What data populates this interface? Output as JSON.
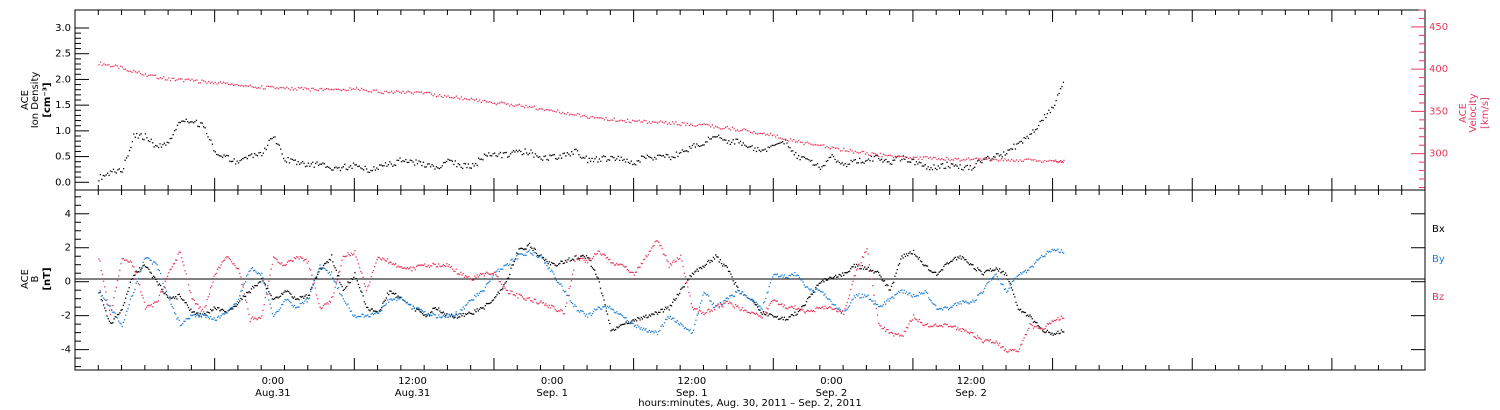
{
  "chart_data": [
    {
      "type": "scatter",
      "panel": "plasma",
      "ylabel_left": [
        "ACE",
        "Ion Density",
        "[cm⁻³]"
      ],
      "ylabel_right": [
        "ACE",
        "Velocity",
        "[km/s]"
      ],
      "ylim_left": [
        -0.15,
        3.35
      ],
      "ylim_right": [
        257,
        470
      ],
      "yticks_left": [
        "0.0",
        "0.5",
        "1.0",
        "1.5",
        "2.0",
        "2.5",
        "3.0"
      ],
      "yticks_right": [
        "300",
        "350",
        "400",
        "450"
      ],
      "series": [
        {
          "axis": "left",
          "color": "#000000",
          "x_hours": [
            0,
            1,
            2,
            3,
            4,
            5,
            6,
            7,
            8,
            9,
            10,
            11,
            12,
            13,
            14,
            15,
            16,
            17,
            18,
            19,
            20,
            21,
            22,
            23,
            24,
            25,
            26,
            27,
            28,
            29,
            30,
            31,
            32,
            33,
            34,
            35,
            36,
            37,
            38,
            39,
            40,
            41,
            42,
            43,
            44,
            45,
            46,
            47,
            48,
            49,
            50,
            51,
            52,
            53,
            54,
            55,
            56,
            57,
            58,
            59,
            60,
            61,
            62,
            63,
            64,
            65,
            66,
            67,
            68,
            69,
            70,
            71,
            72,
            73,
            74,
            75,
            76,
            77,
            78,
            79,
            80,
            81,
            82,
            83
          ],
          "values": [
            0.1,
            0.2,
            0.25,
            0.9,
            0.9,
            0.7,
            0.8,
            1.2,
            1.2,
            1.1,
            0.6,
            0.5,
            0.4,
            0.5,
            0.55,
            0.9,
            0.45,
            0.4,
            0.35,
            0.35,
            0.3,
            0.3,
            0.35,
            0.25,
            0.3,
            0.35,
            0.45,
            0.4,
            0.35,
            0.3,
            0.4,
            0.35,
            0.3,
            0.5,
            0.55,
            0.55,
            0.6,
            0.6,
            0.5,
            0.5,
            0.55,
            0.6,
            0.45,
            0.45,
            0.5,
            0.45,
            0.4,
            0.5,
            0.5,
            0.5,
            0.6,
            0.7,
            0.8,
            0.9,
            0.8,
            0.8,
            0.7,
            0.6,
            0.75,
            0.8,
            0.5,
            0.45,
            0.3,
            0.5,
            0.35,
            0.4,
            0.45,
            0.5,
            0.4,
            0.5,
            0.4,
            0.3,
            0.3,
            0.35,
            0.3,
            0.3,
            0.45,
            0.5,
            0.6,
            0.75,
            0.9,
            1.2,
            1.5,
            2.0
          ]
        },
        {
          "axis": "right",
          "color": "#e8385e",
          "x_hours": [
            0,
            2,
            4,
            6,
            8,
            10,
            12,
            14,
            16,
            18,
            20,
            22,
            24,
            26,
            28,
            30,
            32,
            34,
            36,
            38,
            40,
            42,
            44,
            46,
            48,
            50,
            52,
            54,
            56,
            58,
            60,
            62,
            64,
            66,
            68,
            70,
            72,
            74,
            76,
            78,
            80,
            82,
            83
          ],
          "values": [
            408,
            402,
            394,
            389,
            387,
            385,
            382,
            379,
            378,
            377,
            376,
            377,
            374,
            373,
            372,
            368,
            365,
            361,
            358,
            354,
            349,
            344,
            341,
            339,
            338,
            336,
            334,
            331,
            327,
            322,
            315,
            310,
            305,
            301,
            298,
            296,
            295,
            294,
            294,
            293,
            293,
            292,
            292
          ]
        }
      ]
    },
    {
      "type": "scatter",
      "panel": "magnetic-field",
      "ylabel_left": [
        "ACE",
        "B",
        "[nT]"
      ],
      "ylim": [
        -5.2,
        5.4
      ],
      "yticks": [
        "-4",
        "-2",
        "0",
        "2",
        "4"
      ],
      "series": [
        {
          "name": "Bx",
          "color": "#000000",
          "x_hours": [
            0,
            1,
            2,
            3,
            4,
            5,
            6,
            7,
            8,
            9,
            10,
            11,
            12,
            13,
            14,
            15,
            16,
            17,
            18,
            19,
            20,
            21,
            22,
            23,
            24,
            25,
            26,
            27,
            28,
            29,
            30,
            31,
            32,
            33,
            34,
            35,
            36,
            37,
            38,
            39,
            40,
            41,
            42,
            43,
            44,
            45,
            46,
            47,
            48,
            49,
            50,
            51,
            52,
            53,
            54,
            55,
            56,
            57,
            58,
            59,
            60,
            61,
            62,
            63,
            64,
            65,
            66,
            67,
            68,
            69,
            70,
            71,
            72,
            73,
            74,
            75,
            76,
            77,
            78,
            79,
            80,
            81,
            82,
            83
          ],
          "values": [
            -0.5,
            -2.5,
            -1.5,
            0.5,
            1,
            0,
            -1,
            -0.8,
            -1.8,
            -2,
            -1.5,
            -1.8,
            -1.2,
            -0.5,
            0.2,
            -1,
            -0.5,
            -1,
            -0.8,
            0.8,
            1.5,
            -0.5,
            0.5,
            -1.5,
            -1.8,
            -0.5,
            -1,
            -1.5,
            -2,
            -1.5,
            -2,
            -2,
            -1.8,
            -1.5,
            -1,
            0,
            1.8,
            2.2,
            1.5,
            1,
            1.2,
            1.5,
            1.5,
            0,
            -2.8,
            -2.5,
            -2.2,
            -2,
            -1.8,
            -1.5,
            -0.5,
            0.5,
            1,
            1.5,
            0.8,
            -0.5,
            -1,
            -1.8,
            -2,
            -2.2,
            -1.8,
            -1,
            0,
            0.3,
            0.5,
            1,
            0.8,
            0.5,
            -0.5,
            1.5,
            1.8,
            1,
            0.5,
            1.2,
            1.5,
            1,
            0.5,
            0.8,
            0.5,
            -1.5,
            -2,
            -2.8,
            -3,
            -2.8
          ]
        },
        {
          "name": "By",
          "color": "#1e7fd8",
          "x_hours": [
            0,
            1,
            2,
            3,
            4,
            5,
            6,
            7,
            8,
            9,
            10,
            11,
            12,
            13,
            14,
            15,
            16,
            17,
            18,
            19,
            20,
            21,
            22,
            23,
            24,
            25,
            26,
            27,
            28,
            29,
            30,
            31,
            32,
            33,
            34,
            35,
            36,
            37,
            38,
            39,
            40,
            41,
            42,
            43,
            44,
            45,
            46,
            47,
            48,
            49,
            50,
            51,
            52,
            53,
            54,
            55,
            56,
            57,
            58,
            59,
            60,
            61,
            62,
            63,
            64,
            65,
            66,
            67,
            68,
            69,
            70,
            71,
            72,
            73,
            74,
            75,
            76,
            77,
            78,
            79,
            80,
            81,
            82,
            83
          ],
          "values": [
            -0.5,
            -1.5,
            -2.5,
            -0.5,
            1.5,
            1,
            -1,
            -2.5,
            -2,
            -2,
            -2.2,
            -1.8,
            -1,
            0.8,
            0.5,
            -2,
            -1,
            -1.5,
            -1,
            1,
            0.5,
            -1,
            -2,
            -2,
            -1.8,
            -1,
            -1,
            -1.5,
            -1.8,
            -2,
            -2,
            -1.8,
            -1,
            -0.5,
            0.5,
            1,
            1.5,
            1.8,
            1.5,
            0.5,
            -0.5,
            -1.5,
            -2,
            -1.5,
            -1.5,
            -2,
            -2.5,
            -2.8,
            -3,
            -2,
            -2.5,
            -3,
            -0.5,
            -1.5,
            -1,
            -0.5,
            -1,
            -1.5,
            0.5,
            0.3,
            0.5,
            -0.5,
            -0.5,
            -1.2,
            -1.8,
            -0.8,
            -0.8,
            -1.5,
            -1,
            -0.5,
            -0.8,
            -0.5,
            -1.5,
            -1.5,
            -1.2,
            -1.2,
            -0.5,
            0.5,
            -0.5,
            0.5,
            0.8,
            1.5,
            2,
            1.8
          ]
        },
        {
          "name": "Bz",
          "color": "#e8385e",
          "x_hours": [
            0,
            1,
            2,
            3,
            4,
            5,
            6,
            7,
            8,
            9,
            10,
            11,
            12,
            13,
            14,
            15,
            16,
            17,
            18,
            19,
            20,
            21,
            22,
            23,
            24,
            25,
            26,
            27,
            28,
            29,
            30,
            31,
            32,
            33,
            34,
            35,
            36,
            37,
            38,
            39,
            40,
            41,
            42,
            43,
            44,
            45,
            46,
            47,
            48,
            49,
            50,
            51,
            52,
            53,
            54,
            55,
            56,
            57,
            58,
            59,
            60,
            61,
            62,
            63,
            64,
            65,
            66,
            67,
            68,
            69,
            70,
            71,
            72,
            73,
            74,
            75,
            76,
            77,
            78,
            79,
            80,
            81,
            82,
            83
          ],
          "values": [
            1.5,
            -2,
            1.5,
            1,
            -1.5,
            -1.2,
            0.5,
            1.8,
            -1,
            -1.8,
            0.5,
            1.5,
            0.8,
            -2.2,
            -2,
            1.5,
            1,
            1.5,
            1.2,
            -1.5,
            -1,
            1.5,
            1.8,
            -0.5,
            1.5,
            1.2,
            0.8,
            0.8,
            1,
            1,
            1,
            0.5,
            0.2,
            0.5,
            0.5,
            -0.5,
            -0.8,
            -1,
            -1.2,
            -1.5,
            -1.8,
            1.5,
            1.2,
            1.8,
            1.2,
            1,
            0.5,
            1.5,
            2.5,
            1,
            1.5,
            -1.5,
            -1.8,
            -1.5,
            -1.2,
            -1.5,
            -1.8,
            -2,
            -1,
            -1.5,
            -1.5,
            -1.8,
            -1.5,
            -1.5,
            -1.8,
            0.5,
            2,
            -2.5,
            -3,
            -3.2,
            -2,
            -2.5,
            -2.5,
            -2.5,
            -2.8,
            -3,
            -3.5,
            -3.5,
            -4,
            -4,
            -2.5,
            -2.8,
            -2.2,
            -2
          ]
        }
      ],
      "legend": [
        "Bx",
        "By",
        "Bz"
      ],
      "legend_placement": "right"
    }
  ],
  "x_axis": {
    "tick_labels": [
      {
        "time": "0:00",
        "date": "Aug.31",
        "hour": 12
      },
      {
        "time": "12:00",
        "date": "Aug.31",
        "hour": 24
      },
      {
        "time": "0:00",
        "date": "Sep. 1",
        "hour": 36
      },
      {
        "time": "12:00",
        "date": "Sep. 1",
        "hour": 48
      },
      {
        "time": "0:00",
        "date": "Sep. 2",
        "hour": 60
      },
      {
        "time": "12:00",
        "date": "Sep. 2",
        "hour": 72
      }
    ],
    "xlabel": "hours:minutes, Aug. 30, 2011 – Sep.  2, 2011"
  },
  "colors": {
    "black": "#000000",
    "red": "#e8385e",
    "blue": "#1e7fd8"
  }
}
